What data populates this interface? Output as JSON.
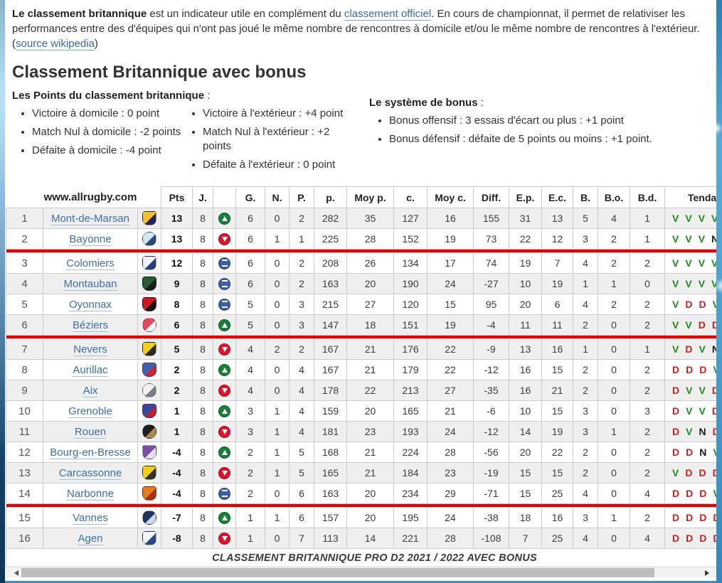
{
  "intro": {
    "lead": "Le classement britannique",
    "t1": " est un indicateur utile en complément du ",
    "link1": "classement officiel",
    "t2": ". En cours de championnat, il permet de relativiser les performances entre des d'équipes qui n'ont pas joué le même nombre de rencontres à domicile et/ou le même nombre de rencontres à l'extérieur. (",
    "link2": "source wikipedia",
    "t3": ")"
  },
  "heading": "Classement Britannique avec bonus",
  "points_rules": {
    "title": "Les Points du classement britannique",
    "suffix": " :",
    "col1": [
      "Victoire à domicile : 0 point",
      "Match Nul à domicile : -2 points",
      "Défaite à domicile : -4 point"
    ],
    "col2": [
      "Victoire à l'extérieur : +4 point",
      "Match Nul à l'extérieur : +2 points",
      "Défaite à l'extérieur : 0 point"
    ]
  },
  "bonus_rules": {
    "title": "Le système de bonus",
    "suffix": " :",
    "items": [
      "Bonus offensif : 3 essais d'écart ou plus : +1 point",
      "Bonus défensif : défaite de 5 points ou moins : +1 point."
    ]
  },
  "table": {
    "headers": [
      "",
      "www.allrugby.com",
      "",
      "Pts",
      "J.",
      "",
      "G.",
      "N.",
      "P.",
      "p.",
      "Moy p.",
      "c.",
      "Moy c.",
      "Diff.",
      "E.p.",
      "E.c.",
      "B.",
      "B.o.",
      "B.d.",
      "Tendance"
    ],
    "caption": "CLASSEMENT BRITANNIQUE PRO D2 2021 / 2022 AVEC BONUS",
    "rows": [
      {
        "rank": 1,
        "team": "Mont-de-Marsan",
        "logo": [
          "#f2c230",
          "#23255e"
        ],
        "shape": "shield",
        "pts": 13,
        "j": 8,
        "icon": "up",
        "g": 6,
        "n": 0,
        "p": 2,
        "pf": 282,
        "moyp": 35,
        "pa": 127,
        "moyc": 16,
        "diff": 155,
        "ep": 31,
        "ec": 13,
        "b": 5,
        "bo": 4,
        "bd": 1,
        "tend": [
          "V",
          "V",
          "V",
          "V"
        ],
        "sep_after": false
      },
      {
        "rank": 2,
        "team": "Bayonne",
        "logo": [
          "#cfe9f5",
          "#2a4a80"
        ],
        "shape": "circle",
        "pts": 13,
        "j": 8,
        "icon": "down",
        "g": 6,
        "n": 1,
        "p": 1,
        "pf": 225,
        "moyp": 28,
        "pa": 152,
        "moyc": 19,
        "diff": 73,
        "ep": 22,
        "ec": 12,
        "b": 3,
        "bo": 2,
        "bd": 1,
        "tend": [
          "V",
          "V",
          "V",
          "N"
        ],
        "sep_after": true
      },
      {
        "rank": 3,
        "team": "Colomiers",
        "logo": [
          "#eef1f6",
          "#2c3c7a"
        ],
        "shape": "shield",
        "pts": 12,
        "j": 8,
        "icon": "equal",
        "g": 6,
        "n": 0,
        "p": 2,
        "pf": 208,
        "moyp": 26,
        "pa": 134,
        "moyc": 17,
        "diff": 74,
        "ep": 19,
        "ec": 7,
        "b": 4,
        "bo": 2,
        "bd": 2,
        "tend": [
          "V",
          "V",
          "V",
          "V"
        ],
        "sep_after": false
      },
      {
        "rank": 4,
        "team": "Montauban",
        "logo": [
          "#265c33",
          "#1d1d1d"
        ],
        "shape": "shield",
        "pts": 9,
        "j": 8,
        "icon": "equal",
        "g": 6,
        "n": 0,
        "p": 2,
        "pf": 163,
        "moyp": 20,
        "pa": 190,
        "moyc": 24,
        "diff": -27,
        "ep": 10,
        "ec": 19,
        "b": 1,
        "bo": 1,
        "bd": 0,
        "tend": [
          "V",
          "V",
          "V",
          "V"
        ],
        "sep_after": false
      },
      {
        "rank": 5,
        "team": "Oyonnax",
        "logo": [
          "#d01820",
          "#141414"
        ],
        "shape": "shield",
        "pts": 8,
        "j": 8,
        "icon": "equal",
        "g": 5,
        "n": 0,
        "p": 3,
        "pf": 215,
        "moyp": 27,
        "pa": 120,
        "moyc": 15,
        "diff": 95,
        "ep": 20,
        "ec": 6,
        "b": 4,
        "bo": 2,
        "bd": 2,
        "tend": [
          "V",
          "D",
          "D",
          "V"
        ],
        "sep_after": false
      },
      {
        "rank": 6,
        "team": "Béziers",
        "logo": [
          "#e84855",
          "#f4f6fa"
        ],
        "shape": "circle",
        "pts": 6,
        "j": 8,
        "icon": "up",
        "g": 5,
        "n": 0,
        "p": 3,
        "pf": 147,
        "moyp": 18,
        "pa": 151,
        "moyc": 19,
        "diff": -4,
        "ep": 11,
        "ec": 11,
        "b": 2,
        "bo": 0,
        "bd": 2,
        "tend": [
          "V",
          "V",
          "D",
          "D"
        ],
        "sep_after": true
      },
      {
        "rank": 7,
        "team": "Nevers",
        "logo": [
          "#f2cf1d",
          "#2a2a2a"
        ],
        "shape": "shield",
        "pts": 5,
        "j": 8,
        "icon": "down",
        "g": 4,
        "n": 2,
        "p": 2,
        "pf": 167,
        "moyp": 21,
        "pa": 176,
        "moyc": 22,
        "diff": -9,
        "ep": 13,
        "ec": 16,
        "b": 1,
        "bo": 0,
        "bd": 1,
        "tend": [
          "V",
          "D",
          "V",
          "N"
        ],
        "sep_after": false
      },
      {
        "rank": 8,
        "team": "Aurillac",
        "logo": [
          "#3a64ad",
          "#cf2435"
        ],
        "shape": "shield",
        "pts": 2,
        "j": 8,
        "icon": "up",
        "g": 4,
        "n": 0,
        "p": 4,
        "pf": 167,
        "moyp": 21,
        "pa": 179,
        "moyc": 22,
        "diff": -12,
        "ep": 16,
        "ec": 15,
        "b": 2,
        "bo": 0,
        "bd": 2,
        "tend": [
          "D",
          "D",
          "D",
          "V"
        ],
        "sep_after": false
      },
      {
        "rank": 9,
        "team": "Aix",
        "logo": [
          "#f2f2f2",
          "#7a7f88"
        ],
        "shape": "circle",
        "pts": 2,
        "j": 8,
        "icon": "down",
        "g": 4,
        "n": 0,
        "p": 4,
        "pf": 178,
        "moyp": 22,
        "pa": 213,
        "moyc": 27,
        "diff": -35,
        "ep": 16,
        "ec": 21,
        "b": 2,
        "bo": 0,
        "bd": 2,
        "tend": [
          "D",
          "V",
          "V",
          "D"
        ],
        "sep_after": false
      },
      {
        "rank": 10,
        "team": "Grenoble",
        "logo": [
          "#31499e",
          "#c41f30"
        ],
        "shape": "shield",
        "pts": 1,
        "j": 8,
        "icon": "up",
        "g": 3,
        "n": 1,
        "p": 4,
        "pf": 159,
        "moyp": 20,
        "pa": 165,
        "moyc": 21,
        "diff": -6,
        "ep": 10,
        "ec": 15,
        "b": 3,
        "bo": 0,
        "bd": 3,
        "tend": [
          "D",
          "V",
          "V",
          "D"
        ],
        "sep_after": false
      },
      {
        "rank": 11,
        "team": "Rouen",
        "logo": [
          "#1f1f1f",
          "#b08a4a"
        ],
        "shape": "circle",
        "pts": 1,
        "j": 8,
        "icon": "down",
        "g": 3,
        "n": 1,
        "p": 4,
        "pf": 181,
        "moyp": 23,
        "pa": 193,
        "moyc": 24,
        "diff": -12,
        "ep": 14,
        "ec": 19,
        "b": 3,
        "bo": 1,
        "bd": 2,
        "tend": [
          "D",
          "V",
          "N",
          "D"
        ],
        "sep_after": false
      },
      {
        "rank": 12,
        "team": "Bourg-en-Bresse",
        "logo": [
          "#7b4fa0",
          "#e8e2f0"
        ],
        "shape": "shield",
        "pts": -4,
        "j": 8,
        "icon": "up",
        "g": 2,
        "n": 1,
        "p": 5,
        "pf": 168,
        "moyp": 21,
        "pa": 224,
        "moyc": 28,
        "diff": -56,
        "ep": 20,
        "ec": 22,
        "b": 2,
        "bo": 0,
        "bd": 2,
        "tend": [
          "D",
          "D",
          "N",
          "V"
        ],
        "sep_after": false
      },
      {
        "rank": 13,
        "team": "Carcassonne",
        "logo": [
          "#f2cf1d",
          "#32322e"
        ],
        "shape": "shield",
        "pts": -4,
        "j": 8,
        "icon": "down",
        "g": 2,
        "n": 1,
        "p": 5,
        "pf": 165,
        "moyp": 21,
        "pa": 184,
        "moyc": 23,
        "diff": -19,
        "ep": 15,
        "ec": 15,
        "b": 2,
        "bo": 0,
        "bd": 2,
        "tend": [
          "V",
          "D",
          "D",
          "D"
        ],
        "sep_after": false
      },
      {
        "rank": 14,
        "team": "Narbonne",
        "logo": [
          "#e87a22",
          "#a33218"
        ],
        "shape": "shield",
        "pts": -4,
        "j": 8,
        "icon": "equal",
        "g": 2,
        "n": 0,
        "p": 6,
        "pf": 163,
        "moyp": 20,
        "pa": 234,
        "moyc": 29,
        "diff": -71,
        "ep": 15,
        "ec": 25,
        "b": 4,
        "bo": 0,
        "bd": 4,
        "tend": [
          "D",
          "D",
          "D",
          "V"
        ],
        "sep_after": true
      },
      {
        "rank": 15,
        "team": "Vannes",
        "logo": [
          "#21335f",
          "#cfd8ea"
        ],
        "shape": "circle",
        "pts": -7,
        "j": 8,
        "icon": "up",
        "g": 1,
        "n": 1,
        "p": 6,
        "pf": 157,
        "moyp": 20,
        "pa": 195,
        "moyc": 24,
        "diff": -38,
        "ep": 18,
        "ec": 16,
        "b": 3,
        "bo": 1,
        "bd": 2,
        "tend": [
          "D",
          "D",
          "D",
          "D"
        ],
        "sep_after": false
      },
      {
        "rank": 16,
        "team": "Agen",
        "logo": [
          "#f5f7fa",
          "#274a86"
        ],
        "shape": "shield",
        "pts": -8,
        "j": 8,
        "icon": "down",
        "g": 1,
        "n": 0,
        "p": 7,
        "pf": 113,
        "moyp": 14,
        "pa": 221,
        "moyc": 28,
        "diff": -108,
        "ep": 7,
        "ec": 25,
        "b": 4,
        "bo": 0,
        "bd": 4,
        "tend": [
          "D",
          "D",
          "D",
          "D"
        ],
        "sep_after": false
      }
    ]
  },
  "colors": {
    "separator_red": "#e60000",
    "link_blue": "#3b6ea5",
    "trend_up_green": "#188038",
    "trend_down_red": "#e0132e",
    "trend_equal_blue": "#3b5ea6",
    "letter_v_green": "#1e8a1e",
    "letter_d_red": "#cc2020",
    "letter_n_black": "#1a1a1a",
    "shaded_row": "#efefef"
  }
}
